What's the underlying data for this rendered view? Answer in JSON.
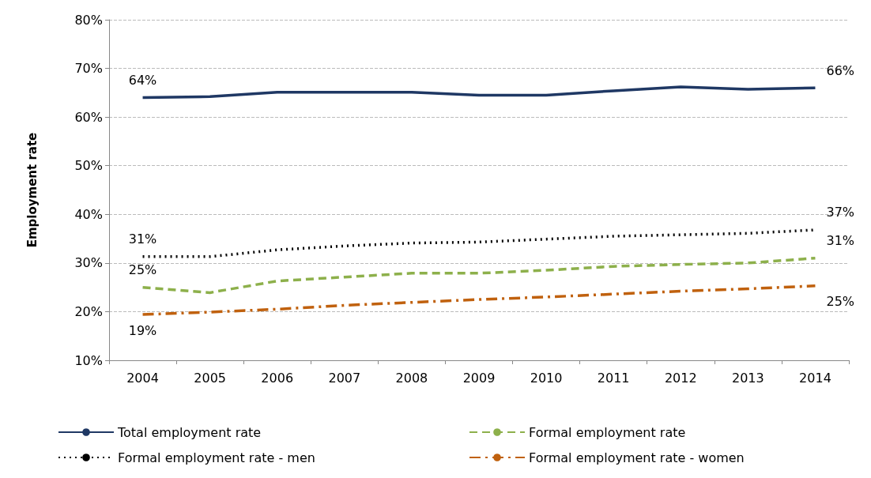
{
  "chart_data": {
    "type": "line",
    "ylabel": "Employment rate",
    "categories": [
      "2004",
      "2005",
      "2006",
      "2007",
      "2008",
      "2009",
      "2010",
      "2011",
      "2012",
      "2013",
      "2014"
    ],
    "series": [
      {
        "name": "Total employment rate",
        "color": "#1f3864",
        "line_style": "solid",
        "values": [
          64.0,
          64.2,
          65.1,
          65.1,
          65.1,
          64.5,
          64.5,
          65.4,
          66.2,
          65.7,
          66.0
        ]
      },
      {
        "name": "Formal employment rate",
        "color": "#8db04b",
        "line_style": "dashed",
        "values": [
          25.0,
          23.9,
          26.3,
          27.1,
          27.9,
          27.9,
          28.5,
          29.3,
          29.7,
          30.0,
          31.0
        ]
      },
      {
        "name": "Formal employment rate - men",
        "color": "#000000",
        "line_style": "dotted",
        "values": [
          31.3,
          31.3,
          32.7,
          33.5,
          34.1,
          34.3,
          34.9,
          35.5,
          35.8,
          36.1,
          36.8
        ]
      },
      {
        "name": "Formal employment rate - women",
        "color": "#c0610e",
        "line_style": "dashdot",
        "values": [
          19.4,
          19.9,
          20.5,
          21.3,
          21.9,
          22.5,
          23.0,
          23.6,
          24.2,
          24.7,
          25.3
        ]
      }
    ],
    "ylim": [
      10,
      80
    ],
    "yticks": [
      {
        "value": 10,
        "label": "10%"
      },
      {
        "value": 20,
        "label": "20%"
      },
      {
        "value": 30,
        "label": "30%"
      },
      {
        "value": 40,
        "label": "40%"
      },
      {
        "value": 50,
        "label": "50%"
      },
      {
        "value": 60,
        "label": "60%"
      },
      {
        "value": 70,
        "label": "70%"
      },
      {
        "value": 80,
        "label": "80%"
      }
    ],
    "grid": "y",
    "legend": "bottom",
    "marker": "none",
    "annotations": [
      {
        "text": "64%",
        "x": "2004",
        "y": 64.0
      },
      {
        "text": "66%",
        "x": "2014",
        "y": 66.0
      },
      {
        "text": "31%",
        "x": "2004",
        "y": 31.3
      },
      {
        "text": "37%",
        "x": "2014",
        "y": 36.8
      },
      {
        "text": "25%",
        "x": "2004",
        "y": 25.0
      },
      {
        "text": "31%",
        "x": "2014",
        "y": 31.0
      },
      {
        "text": "19%",
        "x": "2004",
        "y": 19.4
      },
      {
        "text": "25%",
        "x": "2014",
        "y": 25.3
      }
    ]
  }
}
